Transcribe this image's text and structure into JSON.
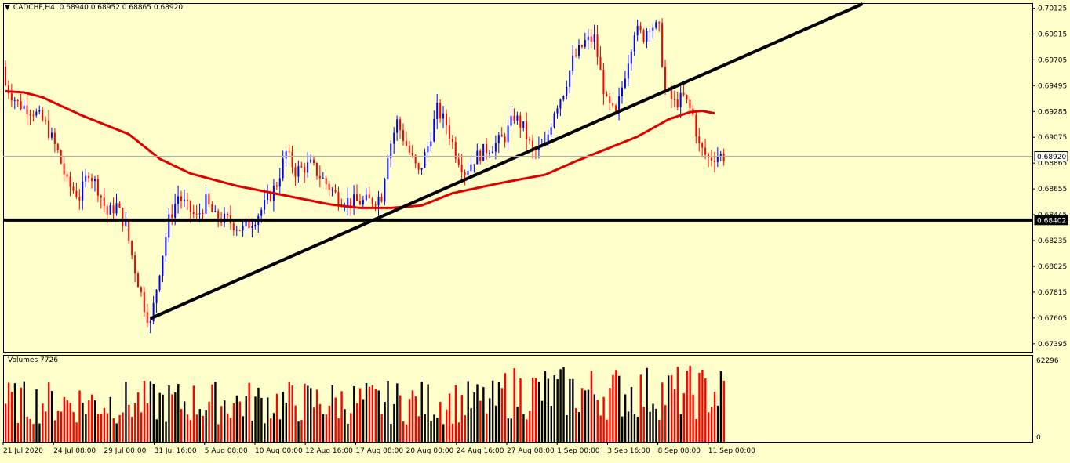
{
  "header": {
    "symbol_tf": "CADCHF,H4",
    "ohlc": "0.68940 0.68952 0.68865 0.68920",
    "triangle": "▼"
  },
  "volume_panel": {
    "title": "Volumes 7726",
    "max_label": "62296",
    "min_label": "0"
  },
  "colors": {
    "background": "#ffffcc",
    "bull": "#0000ff",
    "bear": "#ff0000",
    "ma": "#e00000",
    "line": "#000000",
    "price_tag_bg": "#ffffff"
  },
  "chart_data": {
    "type": "candlestick",
    "symbol": "CADCHF",
    "timeframe": "H4",
    "ylim": [
      0.6733,
      0.7016
    ],
    "y_ticks": [
      "0.70125",
      "0.69915",
      "0.69705",
      "0.69495",
      "0.69285",
      "0.69075",
      "0.68865",
      "0.68655",
      "0.68445",
      "0.68235",
      "0.68025",
      "0.67815",
      "0.67605",
      "0.67395"
    ],
    "x_ticks": [
      "21 Jul 2020",
      "24 Jul 08:00",
      "29 Jul 00:00",
      "31 Jul 16:00",
      "5 Aug 08:00",
      "10 Aug 00:00",
      "12 Aug 16:00",
      "17 Aug 08:00",
      "20 Aug 00:00",
      "24 Aug 16:00",
      "27 Aug 08:00",
      "1 Sep 00:00",
      "3 Sep 16:00",
      "8 Sep 08:00",
      "11 Sep 00:00"
    ],
    "current_price": "0.68920",
    "horizontal_level": "0.68402",
    "close_anchors": [
      [
        0,
        0.695
      ],
      [
        4,
        0.6935
      ],
      [
        9,
        0.6929
      ],
      [
        13,
        0.6918
      ],
      [
        17,
        0.6895
      ],
      [
        20,
        0.687
      ],
      [
        24,
        0.6859
      ],
      [
        27,
        0.688
      ],
      [
        30,
        0.6866
      ],
      [
        33,
        0.6845
      ],
      [
        36,
        0.6852
      ],
      [
        39,
        0.6835
      ],
      [
        42,
        0.68
      ],
      [
        45,
        0.677
      ],
      [
        47,
        0.6755
      ],
      [
        50,
        0.68
      ],
      [
        53,
        0.684
      ],
      [
        56,
        0.686
      ],
      [
        59,
        0.685
      ],
      [
        62,
        0.6842
      ],
      [
        65,
        0.6855
      ],
      [
        68,
        0.6842
      ],
      [
        72,
        0.684
      ],
      [
        77,
        0.6832
      ],
      [
        81,
        0.6842
      ],
      [
        84,
        0.6852
      ],
      [
        88,
        0.687
      ],
      [
        91,
        0.6895
      ],
      [
        94,
        0.688
      ],
      [
        99,
        0.6885
      ],
      [
        104,
        0.687
      ],
      [
        108,
        0.6858
      ],
      [
        112,
        0.6855
      ],
      [
        116,
        0.6855
      ],
      [
        119,
        0.6856
      ],
      [
        122,
        0.686
      ],
      [
        124,
        0.6895
      ],
      [
        127,
        0.692
      ],
      [
        131,
        0.6895
      ],
      [
        134,
        0.6878
      ],
      [
        137,
        0.69
      ],
      [
        140,
        0.693
      ],
      [
        143,
        0.6918
      ],
      [
        146,
        0.6895
      ],
      [
        149,
        0.688
      ],
      [
        152,
        0.689
      ],
      [
        156,
        0.6898
      ],
      [
        159,
        0.6902
      ],
      [
        162,
        0.6908
      ],
      [
        165,
        0.6925
      ],
      [
        168,
        0.6915
      ],
      [
        171,
        0.6895
      ],
      [
        175,
        0.69
      ],
      [
        178,
        0.693
      ],
      [
        181,
        0.6945
      ],
      [
        184,
        0.697
      ],
      [
        188,
        0.6985
      ],
      [
        191,
        0.6988
      ],
      [
        193,
        0.696
      ],
      [
        195,
        0.6935
      ],
      [
        198,
        0.6925
      ],
      [
        201,
        0.696
      ],
      [
        204,
        0.6995
      ],
      [
        207,
        0.699
      ],
      [
        209,
        0.7
      ],
      [
        212,
        0.6995
      ],
      [
        214,
        0.6945
      ],
      [
        217,
        0.6935
      ],
      [
        220,
        0.694
      ],
      [
        223,
        0.6925
      ],
      [
        225,
        0.69
      ],
      [
        228,
        0.689
      ],
      [
        231,
        0.6893
      ],
      [
        233,
        0.6892
      ]
    ],
    "ma_anchors": [
      [
        0,
        0.6945
      ],
      [
        6,
        0.6944
      ],
      [
        12,
        0.694
      ],
      [
        25,
        0.6925
      ],
      [
        40,
        0.691
      ],
      [
        50,
        0.689
      ],
      [
        60,
        0.6878
      ],
      [
        75,
        0.6868
      ],
      [
        85,
        0.6863
      ],
      [
        95,
        0.6858
      ],
      [
        105,
        0.6853
      ],
      [
        115,
        0.685
      ],
      [
        125,
        0.685
      ],
      [
        135,
        0.6852
      ],
      [
        145,
        0.6862
      ],
      [
        160,
        0.687
      ],
      [
        175,
        0.6877
      ],
      [
        185,
        0.6888
      ],
      [
        195,
        0.6898
      ],
      [
        205,
        0.6908
      ],
      [
        215,
        0.6922
      ],
      [
        222,
        0.6928
      ],
      [
        226,
        0.6929
      ],
      [
        230,
        0.6927
      ]
    ],
    "trendline_main": [
      [
        0.676,
        47
      ],
      [
        0.7016,
        278
      ]
    ],
    "volume_ylim": [
      0,
      62296
    ],
    "volume_base": 36000
  }
}
